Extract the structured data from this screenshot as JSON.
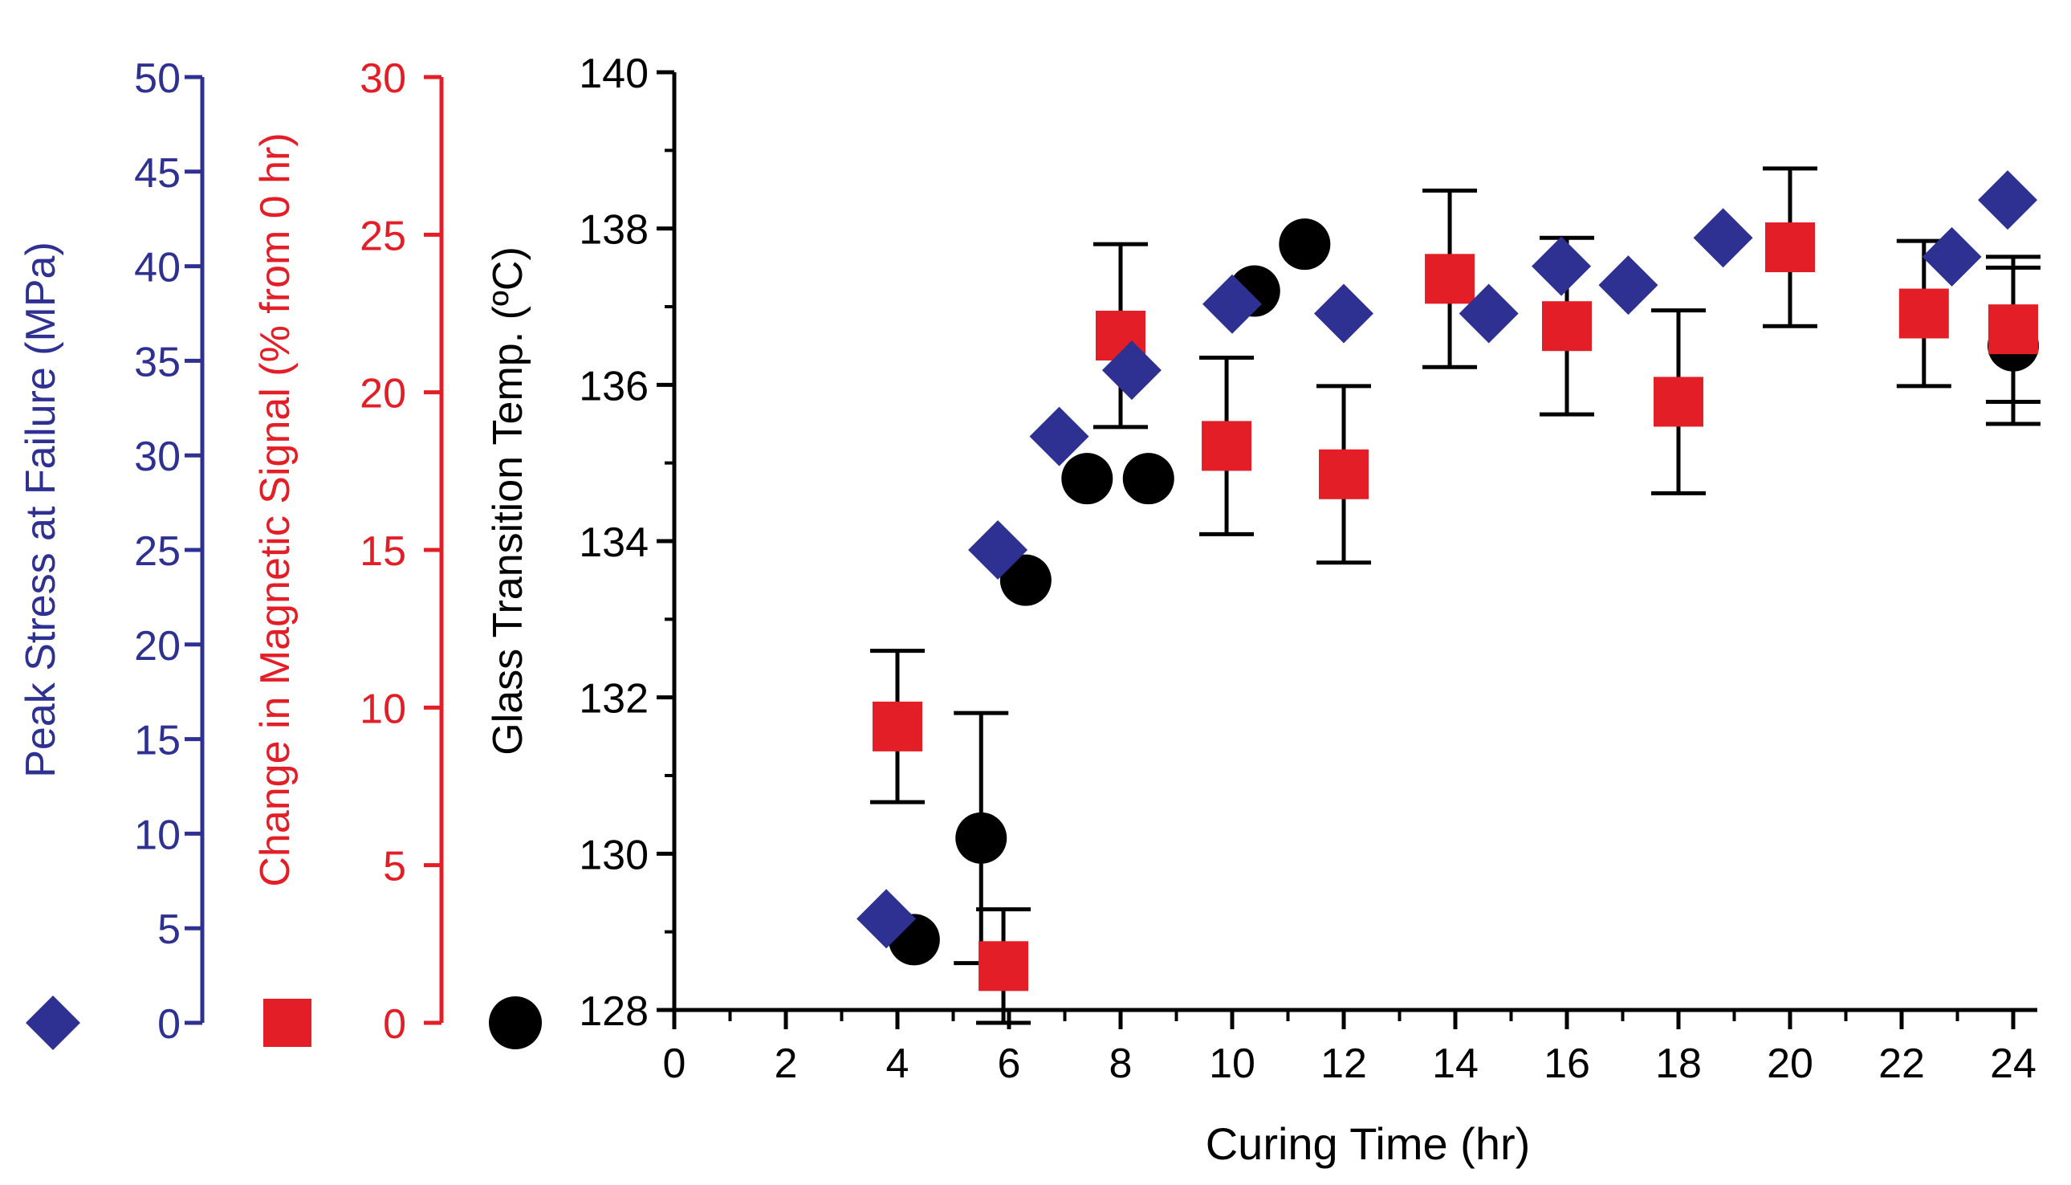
{
  "chart_data": {
    "type": "scatter",
    "xlabel": "Curing Time (hr)",
    "xlim": [
      0,
      24
    ],
    "xticks": [
      0,
      2,
      4,
      6,
      8,
      10,
      12,
      14,
      16,
      18,
      20,
      22,
      24
    ],
    "axes": [
      {
        "id": "stress",
        "label": "Peak Stress at Failure (MPa)",
        "color": "#2e3192",
        "ylim": [
          0,
          50
        ],
        "ticks": [
          0,
          5,
          10,
          15,
          20,
          25,
          30,
          35,
          40,
          45,
          50
        ]
      },
      {
        "id": "magnetic",
        "label": "Change in Magnetic Signal (% from 0 hr)",
        "color": "#e31e26",
        "ylim": [
          0,
          30
        ],
        "ticks": [
          0,
          5,
          10,
          15,
          20,
          25,
          30
        ]
      },
      {
        "id": "tg",
        "label": "Glass Transition Temp. (ºC)",
        "color": "#000000",
        "ylim": [
          128,
          140
        ],
        "ticks": [
          128,
          130,
          132,
          134,
          136,
          138,
          140
        ]
      }
    ],
    "series": [
      {
        "name": "Peak Stress at Failure (MPa)",
        "axis": "stress",
        "marker": "diamond",
        "color": "#2e3192",
        "points": [
          {
            "x": 3.8,
            "y": 5.5
          },
          {
            "x": 5.8,
            "y": 25.0
          },
          {
            "x": 6.9,
            "y": 31.0
          },
          {
            "x": 8.2,
            "y": 34.5
          },
          {
            "x": 10.0,
            "y": 38.0
          },
          {
            "x": 12.0,
            "y": 37.5
          },
          {
            "x": 14.6,
            "y": 37.5
          },
          {
            "x": 15.9,
            "y": 40.0
          },
          {
            "x": 17.1,
            "y": 39.0
          },
          {
            "x": 18.8,
            "y": 41.5
          },
          {
            "x": 22.9,
            "y": 40.5
          },
          {
            "x": 23.9,
            "y": 43.5
          }
        ]
      },
      {
        "name": "Change in Magnetic Signal (% from 0 hr)",
        "axis": "magnetic",
        "marker": "square",
        "color": "#e31e26",
        "points": [
          {
            "x": 4.0,
            "y": 9.4,
            "err": 2.4
          },
          {
            "x": 5.9,
            "y": 1.8,
            "err": 1.8
          },
          {
            "x": 8.0,
            "y": 21.8,
            "err": 2.9
          },
          {
            "x": 9.9,
            "y": 18.3,
            "err": 2.8
          },
          {
            "x": 12.0,
            "y": 17.4,
            "err": 2.8
          },
          {
            "x": 13.9,
            "y": 23.6,
            "err": 2.8
          },
          {
            "x": 16.0,
            "y": 22.1,
            "err": 2.8
          },
          {
            "x": 18.0,
            "y": 19.7,
            "err": 2.9
          },
          {
            "x": 20.0,
            "y": 24.6,
            "err": 2.5
          },
          {
            "x": 22.4,
            "y": 22.5,
            "err": 2.3
          },
          {
            "x": 24.0,
            "y": 22.0,
            "err": 2.3
          }
        ]
      },
      {
        "name": "Glass Transition Temp. (ºC)",
        "axis": "tg",
        "marker": "circle",
        "color": "#000000",
        "points": [
          {
            "x": 4.3,
            "y": 128.9
          },
          {
            "x": 5.5,
            "y": 130.2,
            "err": 1.6
          },
          {
            "x": 6.3,
            "y": 133.5
          },
          {
            "x": 7.4,
            "y": 134.8
          },
          {
            "x": 8.5,
            "y": 134.8
          },
          {
            "x": 10.4,
            "y": 137.2
          },
          {
            "x": 11.3,
            "y": 137.8
          },
          {
            "x": 24.0,
            "y": 136.5,
            "err": 1.0
          }
        ]
      }
    ]
  }
}
